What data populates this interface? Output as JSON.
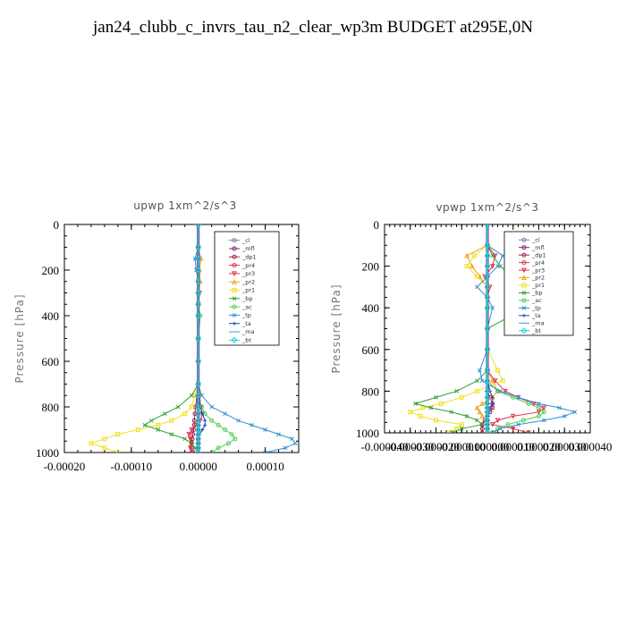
{
  "page": {
    "title": "jan24_clubb_c_invrs_tau_n2_clear_wp3m  BUDGET at295E,0N"
  },
  "chart_data": [
    {
      "type": "line",
      "title": "upwp   1xm^2/s^3",
      "ylabel": "Pressure [hPa]",
      "xlabel": "",
      "xlim": [
        -0.0002,
        0.00015
      ],
      "ylim": [
        1000,
        0
      ],
      "xticks": [
        -0.0002,
        -0.0001,
        0.0,
        0.0001
      ],
      "xtick_labels": [
        "-0.00020",
        "-0.00010",
        "0.00000",
        "0.00010"
      ],
      "yticks": [
        0,
        200,
        400,
        600,
        800,
        1000
      ],
      "ytick_labels": [
        "0",
        "200",
        "400",
        "600",
        "800",
        "1000"
      ],
      "legend_position": "top-right",
      "y": [
        0,
        100,
        150,
        200,
        250,
        300,
        350,
        400,
        500,
        600,
        700,
        750,
        800,
        830,
        860,
        880,
        900,
        920,
        940,
        960,
        980,
        1000
      ],
      "series": [
        {
          "name": "_cl",
          "color": "#7b7bb0",
          "marker": "o",
          "values": [
            0,
            0,
            0,
            0,
            0,
            0,
            0,
            0,
            0,
            0,
            0,
            0,
            0,
            0,
            0,
            0,
            0,
            0,
            0,
            0,
            0,
            0
          ]
        },
        {
          "name": "_mfl",
          "color": "#7a1f7a",
          "marker": "o",
          "values": [
            0,
            0,
            0,
            0,
            0,
            0,
            0,
            0,
            0,
            0,
            0,
            0,
            0,
            0,
            0,
            0,
            0,
            0,
            0,
            0,
            0,
            0
          ]
        },
        {
          "name": "_dp1",
          "color": "#a0204a",
          "marker": "o",
          "values": [
            0,
            0,
            0,
            0,
            0,
            0,
            0,
            0,
            0,
            0,
            0,
            -2e-06,
            -4e-06,
            -5e-06,
            -6e-06,
            -6e-06,
            -7e-06,
            -8e-06,
            -9e-06,
            -1e-05,
            -1e-05,
            -1e-05
          ]
        },
        {
          "name": "_pr4",
          "color": "#e0324a",
          "marker": "o",
          "values": [
            0,
            0,
            0,
            0,
            0,
            0,
            0,
            0,
            0,
            0,
            0,
            0,
            0,
            0,
            0,
            0,
            0,
            0,
            0,
            0,
            0,
            0
          ]
        },
        {
          "name": "_pr3",
          "color": "#e0324a",
          "marker": "v",
          "values": [
            0,
            0,
            2e-06,
            -2e-06,
            0,
            2e-06,
            0,
            0,
            0,
            0,
            0,
            2e-06,
            4e-06,
            6e-06,
            3e-06,
            -4e-06,
            -1e-05,
            -1.4e-05,
            -1.2e-05,
            -1e-05,
            -1.2e-05,
            -8e-06
          ]
        },
        {
          "name": "_pr2",
          "color": "#f0a020",
          "marker": "^",
          "values": [
            0,
            0,
            4e-06,
            2e-06,
            3e-06,
            1e-06,
            0,
            0,
            0,
            0,
            0,
            1e-06,
            0,
            0,
            0,
            0,
            0,
            0,
            0,
            0,
            0,
            0
          ]
        },
        {
          "name": "_pr1",
          "color": "#f0e020",
          "marker": "s",
          "values": [
            0,
            0,
            0,
            0,
            0,
            0,
            0,
            0,
            0,
            0,
            0,
            -5e-06,
            -1e-05,
            -2e-05,
            -4e-05,
            -6e-05,
            -9e-05,
            -0.00012,
            -0.00014,
            -0.00016,
            -0.00014,
            -0.00012
          ]
        },
        {
          "name": "_bp",
          "color": "#30a030",
          "marker": "x",
          "values": [
            0,
            0,
            0,
            0,
            0,
            0,
            0,
            0,
            0,
            0,
            0,
            -1e-05,
            -3e-05,
            -5e-05,
            -7e-05,
            -8e-05,
            -6e-05,
            -4e-05,
            -2e-05,
            -1e-05,
            -5e-06,
            0
          ]
        },
        {
          "name": "_ac",
          "color": "#50d050",
          "marker": "o",
          "values": [
            0,
            0,
            0,
            0,
            0,
            0,
            0,
            3e-06,
            0,
            0,
            0,
            0,
            5e-06,
            1e-05,
            2e-05,
            3e-05,
            4e-05,
            5e-05,
            5.5e-05,
            4.5e-05,
            3e-05,
            2e-05
          ]
        },
        {
          "name": "_tp",
          "color": "#3090d0",
          "marker": "x",
          "values": [
            0,
            0,
            -5e-06,
            -3e-06,
            0,
            0,
            0,
            0,
            0,
            0,
            0,
            5e-06,
            2e-05,
            4e-05,
            6e-05,
            8e-05,
            0.0001,
            0.00012,
            0.00014,
            0.000145,
            0.00013,
            0.0001
          ]
        },
        {
          "name": "_ta",
          "color": "#2040c0",
          "marker": "+",
          "values": [
            0,
            0,
            0,
            0,
            0,
            0,
            0,
            0,
            0,
            0,
            0,
            0,
            3e-06,
            6e-06,
            1e-05,
            1e-05,
            6e-06,
            2e-06,
            0,
            0,
            0,
            0
          ]
        },
        {
          "name": "_ma",
          "color": "#30a0e0",
          "marker": "-",
          "values": [
            0,
            0,
            0,
            0,
            0,
            0,
            0,
            0,
            0,
            0,
            0,
            0,
            0,
            0,
            0,
            0,
            0,
            0,
            0,
            0,
            0,
            0
          ]
        },
        {
          "name": "_bt",
          "color": "#20d0e0",
          "marker": "D",
          "values": [
            0,
            0,
            0,
            0,
            0,
            0,
            0,
            0,
            0,
            0,
            0,
            0,
            0,
            0,
            0,
            0,
            0,
            0,
            0,
            0,
            0,
            0
          ]
        }
      ]
    },
    {
      "type": "line",
      "title": "vpwp   1xm^2/s^3",
      "ylabel": "Pressure [hPa]",
      "xlabel": "",
      "xlim": [
        -4e-05,
        4e-05
      ],
      "ylim": [
        1000,
        0
      ],
      "xticks": [
        -4e-05,
        -3e-05,
        -2e-05,
        -1e-05,
        0.0,
        1e-05,
        2e-05,
        3e-05,
        4e-05
      ],
      "xtick_labels": [
        "-0.000040",
        "-0.000030",
        "-0.000020",
        "-0.000010",
        "0.000000",
        "0.000010",
        "0.000020",
        "0.000030",
        "0.000040"
      ],
      "yticks": [
        0,
        200,
        400,
        600,
        800,
        1000
      ],
      "ytick_labels": [
        "0",
        "200",
        "400",
        "600",
        "800",
        "1000"
      ],
      "legend_position": "top-right",
      "y": [
        0,
        100,
        150,
        200,
        250,
        300,
        350,
        400,
        500,
        600,
        700,
        750,
        800,
        830,
        860,
        880,
        900,
        920,
        940,
        960,
        980,
        1000
      ],
      "series": [
        {
          "name": "_cl",
          "color": "#7b7bb0",
          "marker": "o",
          "values": [
            0,
            0,
            0,
            0,
            0,
            0,
            0,
            0,
            0,
            0,
            0,
            0,
            0,
            0,
            0,
            0,
            0,
            0,
            0,
            0,
            0,
            0
          ]
        },
        {
          "name": "_mfl",
          "color": "#7a1f7a",
          "marker": "o",
          "values": [
            0,
            0,
            0,
            0,
            0,
            0,
            0,
            0,
            0,
            0,
            0,
            0,
            0,
            0,
            0,
            0,
            0,
            0,
            0,
            0,
            0,
            0
          ]
        },
        {
          "name": "_dp1",
          "color": "#a0204a",
          "marker": "o",
          "values": [
            0,
            0,
            0,
            0,
            0,
            0,
            0,
            0,
            0,
            0,
            0,
            0,
            0,
            1e-06,
            2e-06,
            2e-06,
            1e-06,
            0,
            -1e-06,
            -2e-06,
            -2e-06,
            -2e-06
          ]
        },
        {
          "name": "_pr4",
          "color": "#e0324a",
          "marker": "o",
          "values": [
            0,
            0,
            0,
            0,
            0,
            0,
            0,
            0,
            0,
            0,
            0,
            0,
            0,
            0,
            0,
            0,
            0,
            0,
            0,
            0,
            0,
            0
          ]
        },
        {
          "name": "_pr3",
          "color": "#e0324a",
          "marker": "v",
          "values": [
            0,
            0,
            3e-06,
            2e-06,
            -1e-06,
            1e-06,
            0,
            0,
            0,
            0,
            0,
            3e-06,
            7e-06,
            1.2e-05,
            1.8e-05,
            2.2e-05,
            2e-05,
            1e-05,
            4e-06,
            2e-06,
            1e-05,
            1.6e-05
          ]
        },
        {
          "name": "_pr2",
          "color": "#f0a020",
          "marker": "^",
          "values": [
            0,
            0,
            -8e-06,
            -6e-06,
            -3e-06,
            0,
            0,
            0,
            0,
            0,
            0,
            2e-06,
            4e-06,
            2e-06,
            -2e-06,
            -4e-06,
            -3e-06,
            -2e-06,
            0,
            0,
            0,
            0
          ]
        },
        {
          "name": "_pr1",
          "color": "#f0e020",
          "marker": "s",
          "values": [
            0,
            0,
            -5e-06,
            -8e-06,
            -4e-06,
            0,
            0,
            0,
            0,
            0,
            4e-06,
            6e-06,
            -4e-06,
            -1e-05,
            -1.8e-05,
            -2.5e-05,
            -3e-05,
            -2.6e-05,
            -2e-05,
            -1e-05,
            -1.2e-05,
            -1.5e-05
          ]
        },
        {
          "name": "_bp",
          "color": "#30a030",
          "marker": "x",
          "values": [
            0,
            0,
            2e-06,
            5e-06,
            1e-05,
            1.5e-05,
            2e-05,
            1.5e-05,
            0,
            0,
            0,
            -4e-06,
            -1.2e-05,
            -2e-05,
            -2.8e-05,
            -2.2e-05,
            -1.4e-05,
            -8e-06,
            -4e-06,
            -2e-06,
            -1e-05,
            -1.4e-05
          ]
        },
        {
          "name": "_ac",
          "color": "#50d050",
          "marker": "o",
          "values": [
            0,
            0,
            0,
            0,
            0,
            0,
            0,
            0,
            0,
            0,
            0,
            0,
            4e-06,
            1e-05,
            1.6e-05,
            2e-05,
            2.2e-05,
            2e-05,
            1.4e-05,
            8e-06,
            4e-06,
            2e-06
          ]
        },
        {
          "name": "_tp",
          "color": "#3090d0",
          "marker": "x",
          "values": [
            0,
            0,
            6e-06,
            4e-06,
            0,
            -4e-06,
            0,
            2e-06,
            0,
            0,
            -3e-06,
            -2e-06,
            5e-06,
            1.2e-05,
            2e-05,
            2.8e-05,
            3.4e-05,
            3e-05,
            2.2e-05,
            1.2e-05,
            5e-06,
            2e-06
          ]
        },
        {
          "name": "_ta",
          "color": "#2040c0",
          "marker": "+",
          "values": [
            0,
            0,
            0,
            0,
            0,
            0,
            0,
            0,
            0,
            0,
            0,
            0,
            1e-06,
            2e-06,
            2e-06,
            1e-06,
            0,
            0,
            0,
            0,
            0,
            0
          ]
        },
        {
          "name": "_ma",
          "color": "#30a0e0",
          "marker": "-",
          "values": [
            0,
            0,
            0,
            0,
            0,
            0,
            0,
            0,
            0,
            0,
            0,
            0,
            0,
            0,
            0,
            0,
            0,
            0,
            0,
            0,
            0,
            0
          ]
        },
        {
          "name": "_bt",
          "color": "#20d0e0",
          "marker": "D",
          "values": [
            0,
            0,
            0,
            0,
            0,
            0,
            0,
            0,
            0,
            0,
            0,
            0,
            0,
            0,
            0,
            0,
            0,
            0,
            0,
            0,
            0,
            0
          ]
        }
      ]
    }
  ]
}
